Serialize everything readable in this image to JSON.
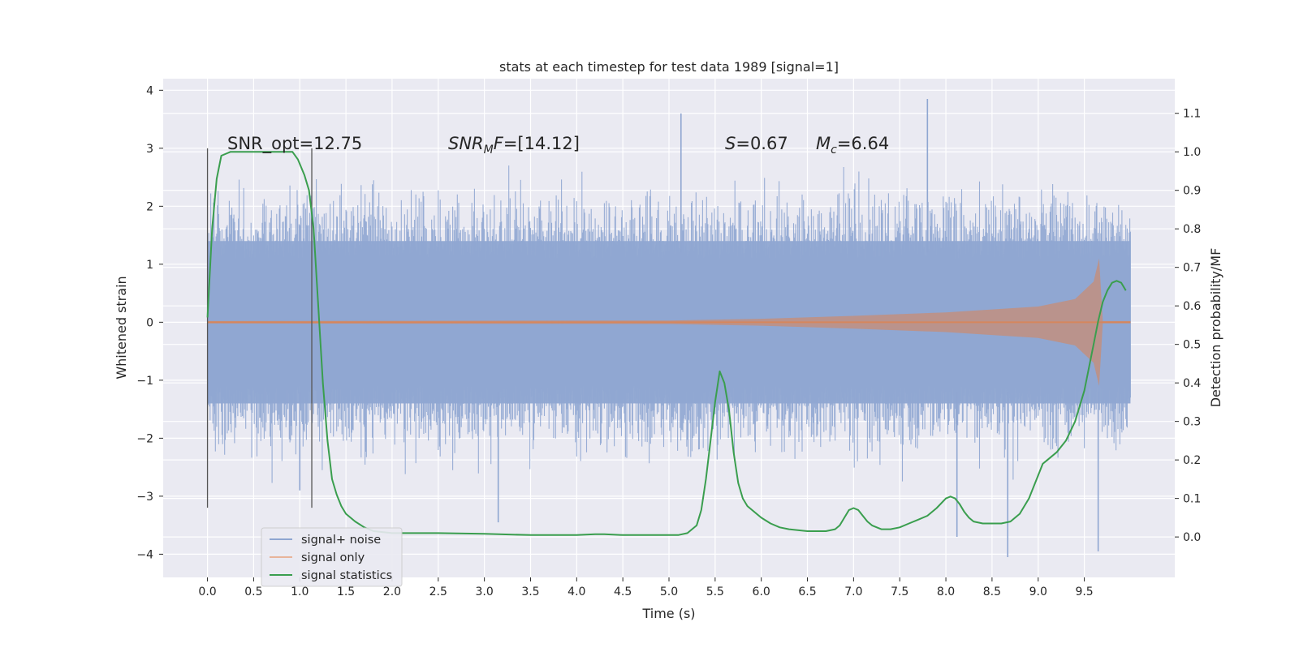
{
  "chart_data": {
    "type": "line",
    "title": "stats at each timestep for test data 1989 [signal=1]",
    "xlabel": "Time (s)",
    "ylabel": "Whitened strain",
    "y2label": "Detection probability/MF",
    "xlim": [
      -0.48,
      10.48
    ],
    "ylim": [
      -4.4,
      4.2
    ],
    "y2lim": [
      -0.105,
      1.19
    ],
    "grid": true,
    "legend_position": "lower-left",
    "x_ticks": [
      "0.0",
      "0.5",
      "1.0",
      "1.5",
      "2.0",
      "2.5",
      "3.0",
      "3.5",
      "4.0",
      "4.5",
      "5.0",
      "5.5",
      "6.0",
      "6.5",
      "7.0",
      "7.5",
      "8.0",
      "8.5",
      "9.0",
      "9.5"
    ],
    "y_ticks": [
      "4",
      "3",
      "2",
      "1",
      "0",
      "−1",
      "−2",
      "−3",
      "−4"
    ],
    "y2_ticks": [
      "1.1",
      "1.0",
      "0.9",
      "0.8",
      "0.7",
      "0.6",
      "0.5",
      "0.4",
      "0.3",
      "0.2",
      "0.1",
      "0.0"
    ],
    "annotations": {
      "snr_opt": "SNR_opt=12.75",
      "snr_mf_label": "SNR",
      "snr_mf_sub": "M",
      "snr_mf_f": "F",
      "snr_mf_value": "=[14.12]",
      "s_label": "S",
      "s_value": "=0.67",
      "mc_label": "M",
      "mc_sub": "c",
      "mc_value": "=6.64"
    },
    "vertical_lines": [
      0.0,
      1.13
    ],
    "series": [
      {
        "name": "signal+ noise",
        "color": "#8fa6d1",
        "envelope": {
          "x": [
            0.0,
            10.0
          ],
          "typical_band": [
            -1.4,
            1.4
          ],
          "extreme_peaks": [
            [
              1.0,
              -2.9
            ],
            [
              3.15,
              -3.45
            ],
            [
              5.13,
              3.6
            ],
            [
              7.8,
              3.85
            ],
            [
              8.12,
              -3.7
            ],
            [
              8.67,
              -4.05
            ],
            [
              9.65,
              -3.95
            ]
          ]
        }
      },
      {
        "name": "signal only",
        "color": "#dd8452",
        "envelope_x": [
          0.0,
          5.0,
          6.0,
          7.0,
          8.0,
          9.0,
          9.4,
          9.6,
          9.66,
          9.7,
          10.0
        ],
        "envelope_amp": [
          0.02,
          0.03,
          0.06,
          0.11,
          0.17,
          0.27,
          0.4,
          0.7,
          1.1,
          0.02,
          0.02
        ]
      },
      {
        "name": "signal statistics",
        "color": "#3a9e4e",
        "axis": "right",
        "x": [
          0.0,
          0.05,
          0.1,
          0.15,
          0.25,
          0.4,
          0.6,
          0.8,
          0.92,
          0.98,
          1.05,
          1.1,
          1.15,
          1.2,
          1.25,
          1.3,
          1.35,
          1.4,
          1.45,
          1.5,
          1.6,
          1.7,
          1.8,
          2.0,
          2.5,
          3.0,
          3.5,
          4.0,
          4.2,
          4.3,
          4.5,
          5.0,
          5.1,
          5.2,
          5.3,
          5.35,
          5.4,
          5.45,
          5.5,
          5.55,
          5.6,
          5.65,
          5.7,
          5.75,
          5.8,
          5.85,
          5.9,
          6.0,
          6.1,
          6.2,
          6.3,
          6.5,
          6.7,
          6.8,
          6.85,
          6.9,
          6.95,
          7.0,
          7.05,
          7.1,
          7.15,
          7.2,
          7.3,
          7.4,
          7.5,
          7.6,
          7.7,
          7.8,
          7.9,
          8.0,
          8.05,
          8.1,
          8.15,
          8.2,
          8.25,
          8.3,
          8.4,
          8.5,
          8.6,
          8.7,
          8.8,
          8.9,
          9.0,
          9.05,
          9.1,
          9.2,
          9.3,
          9.4,
          9.5,
          9.55,
          9.6,
          9.65,
          9.7,
          9.75,
          9.8,
          9.85,
          9.9,
          9.95
        ],
        "y": [
          0.57,
          0.8,
          0.93,
          0.99,
          1.0,
          1.0,
          1.0,
          1.0,
          1.0,
          0.98,
          0.94,
          0.9,
          0.8,
          0.6,
          0.4,
          0.25,
          0.15,
          0.11,
          0.08,
          0.06,
          0.04,
          0.025,
          0.015,
          0.01,
          0.01,
          0.008,
          0.005,
          0.005,
          0.007,
          0.007,
          0.005,
          0.005,
          0.005,
          0.01,
          0.03,
          0.07,
          0.15,
          0.25,
          0.35,
          0.43,
          0.4,
          0.33,
          0.22,
          0.14,
          0.1,
          0.08,
          0.07,
          0.05,
          0.035,
          0.025,
          0.02,
          0.015,
          0.015,
          0.02,
          0.03,
          0.05,
          0.07,
          0.075,
          0.07,
          0.055,
          0.04,
          0.03,
          0.02,
          0.02,
          0.025,
          0.035,
          0.045,
          0.055,
          0.075,
          0.1,
          0.105,
          0.1,
          0.085,
          0.065,
          0.05,
          0.04,
          0.035,
          0.035,
          0.035,
          0.04,
          0.06,
          0.1,
          0.16,
          0.19,
          0.2,
          0.22,
          0.25,
          0.3,
          0.38,
          0.44,
          0.5,
          0.56,
          0.61,
          0.64,
          0.66,
          0.665,
          0.66,
          0.64
        ]
      }
    ]
  }
}
